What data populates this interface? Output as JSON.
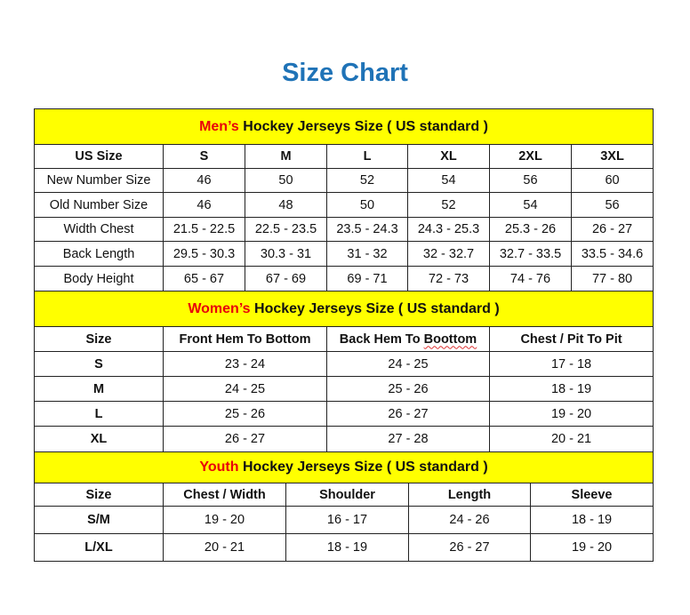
{
  "title": "Size Chart",
  "colors": {
    "band": "#ffff00",
    "highlight": "#e8000b",
    "title": "#1f73b7"
  },
  "men": {
    "highlight": "Men’s",
    "heading": " Hockey Jerseys Size ( US standard )",
    "columns": [
      "US Size",
      "S",
      "M",
      "L",
      "XL",
      "2XL",
      "3XL"
    ],
    "rows": [
      [
        "New Number Size",
        "46",
        "50",
        "52",
        "54",
        "56",
        "60"
      ],
      [
        "Old Number Size",
        "46",
        "48",
        "50",
        "52",
        "54",
        "56"
      ],
      [
        "Width Chest",
        "21.5 - 22.5",
        "22.5 - 23.5",
        "23.5 - 24.3",
        "24.3 - 25.3",
        "25.3 - 26",
        "26 - 27"
      ],
      [
        "Back Length",
        "29.5 - 30.3",
        "30.3 - 31",
        "31 - 32",
        "32 - 32.7",
        "32.7 - 33.5",
        "33.5 - 34.6"
      ],
      [
        "Body Height",
        "65 - 67",
        "67 - 69",
        "69 - 71",
        "72 - 73",
        "74 - 76",
        "77 - 80"
      ]
    ]
  },
  "women": {
    "highlight": "Women’s",
    "heading": " Hockey Jerseys Size ( US standard )",
    "columns": [
      "Size",
      "Front Hem To Bottom",
      "Back Hem To Boottom",
      "Chest / Pit To Pit"
    ],
    "rows": [
      [
        "S",
        "23 - 24",
        "24 - 25",
        "17 - 18"
      ],
      [
        "M",
        "24 - 25",
        "25 - 26",
        "18 - 19"
      ],
      [
        "L",
        "25 - 26",
        "26 - 27",
        "19 - 20"
      ],
      [
        "XL",
        "26 - 27",
        "27 - 28",
        "20 - 21"
      ]
    ]
  },
  "youth": {
    "highlight": "Youth",
    "heading": " Hockey Jerseys Size ( US standard )",
    "columns": [
      "Size",
      "Chest / Width",
      "Shoulder",
      "Length",
      "Sleeve"
    ],
    "rows": [
      [
        "S/M",
        "19 - 20",
        "16 - 17",
        "24 - 26",
        "18 - 19"
      ],
      [
        "L/XL",
        "20 - 21",
        "18 - 19",
        "26 - 27",
        "19 - 20"
      ]
    ]
  }
}
